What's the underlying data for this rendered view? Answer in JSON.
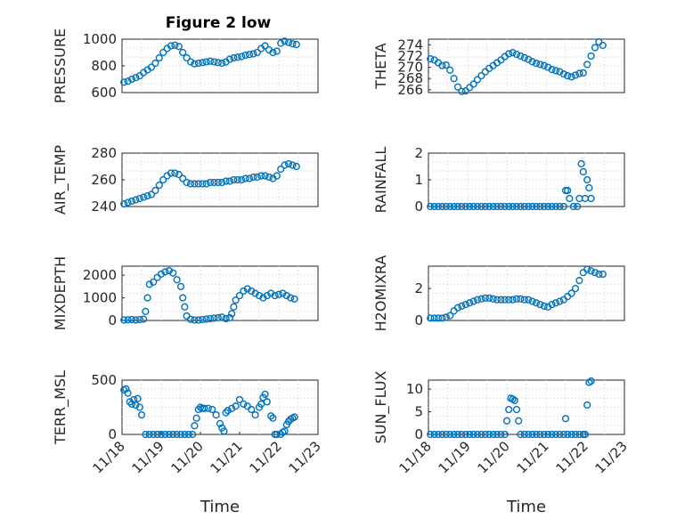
{
  "figure": {
    "title": "Figure 2 low"
  },
  "chart_data": [
    {
      "type": "scatter",
      "name": "pressure",
      "ylabel": "PRESSURE",
      "xlabel": "",
      "xlim": [
        18,
        23
      ],
      "ylim": [
        600,
        1000
      ],
      "yticks": [
        600,
        800,
        1000
      ],
      "xticks": [],
      "title": "Figure 2 low",
      "x": [
        18.05,
        18.15,
        18.25,
        18.35,
        18.45,
        18.55,
        18.65,
        18.75,
        18.85,
        18.95,
        19.05,
        19.15,
        19.25,
        19.35,
        19.45,
        19.55,
        19.65,
        19.75,
        19.85,
        19.95,
        20.05,
        20.15,
        20.25,
        20.35,
        20.45,
        20.55,
        20.65,
        20.75,
        20.85,
        20.95,
        21.05,
        21.15,
        21.25,
        21.35,
        21.45,
        21.55,
        21.65,
        21.75,
        21.85,
        21.95,
        22.05,
        22.15,
        22.25,
        22.35,
        22.45
      ],
      "y": [
        678,
        685,
        700,
        712,
        725,
        750,
        770,
        790,
        820,
        860,
        900,
        930,
        950,
        955,
        945,
        900,
        860,
        830,
        815,
        820,
        825,
        830,
        835,
        830,
        825,
        820,
        830,
        850,
        860,
        865,
        870,
        880,
        885,
        890,
        900,
        930,
        950,
        920,
        900,
        910,
        970,
        985,
        975,
        965,
        960
      ]
    },
    {
      "type": "scatter",
      "name": "theta",
      "ylabel": "THETA",
      "xlim": [
        18,
        23
      ],
      "ylim": [
        265.5,
        275
      ],
      "yticks": [
        266,
        268,
        270,
        272,
        274
      ],
      "xticks": [],
      "x": [
        18.05,
        18.15,
        18.25,
        18.35,
        18.45,
        18.55,
        18.65,
        18.75,
        18.85,
        18.95,
        19.05,
        19.15,
        19.25,
        19.35,
        19.45,
        19.55,
        19.65,
        19.75,
        19.85,
        19.95,
        20.05,
        20.15,
        20.25,
        20.35,
        20.45,
        20.55,
        20.65,
        20.75,
        20.85,
        20.95,
        21.05,
        21.15,
        21.25,
        21.35,
        21.45,
        21.55,
        21.65,
        21.75,
        21.85,
        21.95,
        22.05,
        22.15,
        22.25,
        22.35,
        22.45
      ],
      "y": [
        271.5,
        271.3,
        270.8,
        270.3,
        270.4,
        269.5,
        268,
        266.5,
        265.7,
        265.8,
        266.4,
        267,
        267.8,
        268.5,
        269.2,
        269.8,
        270.3,
        270.8,
        271.3,
        271.9,
        272.4,
        272.6,
        272.3,
        272,
        271.7,
        271.4,
        271,
        270.7,
        270.5,
        270.3,
        270,
        269.6,
        269.4,
        269.2,
        268.8,
        268.5,
        268.3,
        268.6,
        268.9,
        269,
        270.5,
        272,
        273.5,
        274.5,
        273.9
      ]
    },
    {
      "type": "scatter",
      "name": "air-temp",
      "ylabel": "AIR_TEMP",
      "xlim": [
        18,
        23
      ],
      "ylim": [
        240,
        280
      ],
      "yticks": [
        240,
        260,
        280
      ],
      "xticks": [],
      "x": [
        18.05,
        18.15,
        18.25,
        18.35,
        18.45,
        18.55,
        18.65,
        18.75,
        18.85,
        18.95,
        19.05,
        19.15,
        19.25,
        19.35,
        19.45,
        19.55,
        19.65,
        19.75,
        19.85,
        19.95,
        20.05,
        20.15,
        20.25,
        20.35,
        20.45,
        20.55,
        20.65,
        20.75,
        20.85,
        20.95,
        21.05,
        21.15,
        21.25,
        21.35,
        21.45,
        21.55,
        21.65,
        21.75,
        21.85,
        21.95,
        22.05,
        22.15,
        22.25,
        22.35,
        22.45
      ],
      "y": [
        242,
        243,
        244,
        245,
        246,
        247,
        248,
        249,
        252,
        256,
        260,
        263,
        265,
        265,
        264,
        261,
        258,
        257,
        257,
        257,
        257,
        257,
        258,
        258,
        258,
        258,
        259,
        259,
        260,
        260,
        260,
        261,
        261,
        262,
        262,
        263,
        263,
        262,
        261,
        263,
        268,
        271,
        272,
        271,
        270
      ]
    },
    {
      "type": "scatter",
      "name": "rainfall",
      "ylabel": "RAINFALL",
      "xlim": [
        18,
        23
      ],
      "ylim": [
        0,
        2
      ],
      "yticks": [
        0,
        1,
        2
      ],
      "xticks": [],
      "x": [
        18.05,
        18.15,
        18.25,
        18.35,
        18.45,
        18.55,
        18.65,
        18.75,
        18.85,
        18.95,
        19.05,
        19.15,
        19.25,
        19.35,
        19.45,
        19.55,
        19.65,
        19.75,
        19.85,
        19.95,
        20.05,
        20.15,
        20.25,
        20.35,
        20.45,
        20.55,
        20.65,
        20.75,
        20.85,
        20.95,
        21.05,
        21.15,
        21.25,
        21.35,
        21.45,
        21.5,
        21.55,
        21.6,
        21.7,
        21.8,
        21.85,
        21.9,
        21.95,
        22.0,
        22.05,
        22.1,
        22.15
      ],
      "y": [
        0,
        0,
        0,
        0,
        0,
        0,
        0,
        0,
        0,
        0,
        0,
        0,
        0,
        0,
        0,
        0,
        0,
        0,
        0,
        0,
        0,
        0,
        0,
        0,
        0,
        0,
        0,
        0,
        0,
        0,
        0,
        0,
        0,
        0,
        0,
        0.6,
        0.6,
        0.3,
        0,
        0,
        0.3,
        1.6,
        1.3,
        0.3,
        1.0,
        0.7,
        0.3
      ]
    },
    {
      "type": "scatter",
      "name": "mixdepth",
      "ylabel": "MIXDEPTH",
      "xlim": [
        18,
        23
      ],
      "ylim": [
        0,
        2400
      ],
      "yticks": [
        0,
        1000,
        2000
      ],
      "xticks": [],
      "x": [
        18.05,
        18.15,
        18.25,
        18.35,
        18.45,
        18.55,
        18.6,
        18.65,
        18.7,
        18.8,
        18.9,
        19.0,
        19.1,
        19.2,
        19.3,
        19.4,
        19.5,
        19.55,
        19.6,
        19.65,
        19.75,
        19.85,
        19.95,
        20.05,
        20.15,
        20.25,
        20.35,
        20.45,
        20.55,
        20.65,
        20.75,
        20.8,
        20.85,
        20.9,
        21.0,
        21.1,
        21.2,
        21.3,
        21.4,
        21.5,
        21.6,
        21.7,
        21.8,
        21.9,
        22.0,
        22.1,
        22.2,
        22.3,
        22.4
      ],
      "y": [
        20,
        30,
        40,
        20,
        40,
        60,
        400,
        1000,
        1600,
        1700,
        1900,
        2050,
        2150,
        2200,
        2100,
        1800,
        1500,
        1000,
        600,
        200,
        50,
        20,
        20,
        40,
        60,
        80,
        100,
        120,
        150,
        80,
        120,
        300,
        600,
        900,
        1100,
        1300,
        1400,
        1300,
        1200,
        1100,
        1000,
        1100,
        1200,
        1100,
        1150,
        1200,
        1100,
        1000,
        950
      ]
    },
    {
      "type": "scatter",
      "name": "h2omixra",
      "ylabel": "H2OMIXRA",
      "xlim": [
        18,
        23
      ],
      "ylim": [
        0,
        3.4
      ],
      "yticks": [
        0,
        2
      ],
      "xticks": [],
      "x": [
        18.05,
        18.15,
        18.25,
        18.35,
        18.45,
        18.55,
        18.65,
        18.75,
        18.85,
        18.95,
        19.05,
        19.15,
        19.25,
        19.35,
        19.45,
        19.55,
        19.65,
        19.75,
        19.85,
        19.95,
        20.05,
        20.15,
        20.25,
        20.35,
        20.45,
        20.55,
        20.65,
        20.75,
        20.85,
        20.95,
        21.05,
        21.15,
        21.25,
        21.35,
        21.45,
        21.55,
        21.65,
        21.75,
        21.85,
        21.95,
        22.05,
        22.15,
        22.25,
        22.35,
        22.45
      ],
      "y": [
        0.15,
        0.15,
        0.15,
        0.15,
        0.2,
        0.3,
        0.6,
        0.8,
        0.9,
        1.0,
        1.1,
        1.2,
        1.3,
        1.35,
        1.4,
        1.4,
        1.35,
        1.3,
        1.3,
        1.3,
        1.3,
        1.3,
        1.35,
        1.35,
        1.3,
        1.3,
        1.2,
        1.1,
        1.0,
        0.9,
        0.85,
        1.0,
        1.1,
        1.2,
        1.3,
        1.5,
        1.7,
        2.0,
        2.5,
        3.0,
        3.2,
        3.1,
        3.0,
        2.9,
        2.9
      ]
    },
    {
      "type": "scatter",
      "name": "terr-msl",
      "ylabel": "TERR_MSL",
      "xlim": [
        18,
        23
      ],
      "ylim": [
        0,
        500
      ],
      "yticks": [
        0,
        500
      ],
      "xticks": [
        "11/18",
        "11/19",
        "11/20",
        "11/21",
        "11/22",
        "11/23"
      ],
      "xtick_values": [
        18,
        19,
        20,
        21,
        22,
        23
      ],
      "xlabel": "Time",
      "x": [
        18.05,
        18.1,
        18.15,
        18.2,
        18.25,
        18.3,
        18.35,
        18.4,
        18.45,
        18.5,
        18.6,
        18.7,
        18.8,
        18.9,
        19.0,
        19.1,
        19.2,
        19.3,
        19.4,
        19.5,
        19.6,
        19.7,
        19.8,
        19.85,
        19.9,
        19.95,
        20.0,
        20.05,
        20.1,
        20.2,
        20.3,
        20.4,
        20.5,
        20.55,
        20.6,
        20.65,
        20.7,
        20.8,
        20.9,
        21.0,
        21.1,
        21.2,
        21.3,
        21.4,
        21.5,
        21.55,
        21.6,
        21.65,
        21.7,
        21.8,
        21.85,
        21.9,
        21.95,
        22.05,
        22.1,
        22.15,
        22.2,
        22.25,
        22.3,
        22.35,
        22.4
      ],
      "y": [
        410,
        420,
        380,
        300,
        280,
        320,
        270,
        330,
        250,
        180,
        0,
        0,
        0,
        0,
        0,
        0,
        0,
        0,
        0,
        0,
        0,
        0,
        0,
        80,
        150,
        230,
        250,
        240,
        240,
        240,
        230,
        180,
        100,
        60,
        30,
        200,
        220,
        240,
        260,
        320,
        280,
        260,
        230,
        180,
        250,
        280,
        340,
        370,
        300,
        170,
        150,
        0,
        0,
        0,
        20,
        30,
        90,
        120,
        140,
        150,
        160
      ]
    },
    {
      "type": "scatter",
      "name": "sun-flux",
      "ylabel": "SUN_FLUX",
      "xlim": [
        18,
        23
      ],
      "ylim": [
        0,
        12
      ],
      "yticks": [
        0,
        5,
        10
      ],
      "xticks": [
        "11/18",
        "11/19",
        "11/20",
        "11/21",
        "11/22",
        "11/23"
      ],
      "xtick_values": [
        18,
        19,
        20,
        21,
        22,
        23
      ],
      "xlabel": "Time",
      "x": [
        18.05,
        18.15,
        18.25,
        18.35,
        18.45,
        18.55,
        18.65,
        18.75,
        18.85,
        18.95,
        19.05,
        19.15,
        19.25,
        19.35,
        19.45,
        19.55,
        19.65,
        19.75,
        19.85,
        19.95,
        20.0,
        20.05,
        20.1,
        20.15,
        20.2,
        20.25,
        20.3,
        20.35,
        20.45,
        20.55,
        20.65,
        20.75,
        20.85,
        20.95,
        21.05,
        21.15,
        21.25,
        21.35,
        21.45,
        21.5,
        21.55,
        21.65,
        21.75,
        21.85,
        21.95,
        22.0,
        22.05,
        22.1,
        22.15
      ],
      "y": [
        0,
        0,
        0,
        0,
        0,
        0,
        0,
        0,
        0,
        0,
        0,
        0,
        0,
        0,
        0,
        0,
        0,
        0,
        0,
        0,
        3.0,
        5.5,
        8.0,
        7.8,
        7.5,
        5.5,
        3.0,
        0,
        0,
        0,
        0,
        0,
        0,
        0,
        0,
        0,
        0,
        0,
        0,
        3.5,
        0,
        0,
        0,
        0,
        0,
        0,
        6.5,
        11.5,
        11.8
      ]
    }
  ],
  "style": {
    "marker_color": "#0072bd"
  }
}
